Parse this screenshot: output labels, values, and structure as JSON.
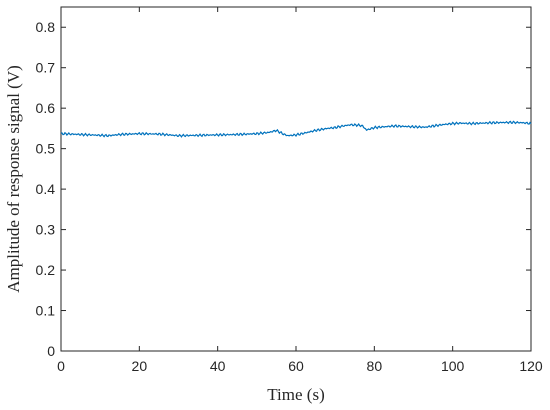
{
  "chart_data": {
    "type": "line",
    "title": "",
    "xlabel": "Time (s)",
    "ylabel": "Amplitude of response signal (V)",
    "xlim": [
      0,
      120
    ],
    "ylim": [
      0,
      0.85
    ],
    "xticks": [
      0,
      20,
      40,
      60,
      80,
      100,
      120
    ],
    "xtick_labels": [
      "0",
      "20",
      "40",
      "60",
      "80",
      "100",
      "120"
    ],
    "yticks": [
      0,
      0.1,
      0.2,
      0.3,
      0.4,
      0.5,
      0.6,
      0.7,
      0.8
    ],
    "ytick_labels": [
      "0",
      "0.1",
      "0.2",
      "0.3",
      "0.4",
      "0.5",
      "0.6",
      "0.7",
      "0.8"
    ],
    "grid": false,
    "legend": "none",
    "series": [
      {
        "color": "#0072bd",
        "x": [
          0,
          5,
          10,
          12,
          15,
          20,
          25,
          30,
          35,
          40,
          45,
          50,
          53,
          55,
          57,
          58,
          60,
          62,
          65,
          68,
          70,
          72,
          74,
          76,
          77,
          78,
          80,
          85,
          90,
          93,
          95,
          98,
          100,
          102,
          105,
          110,
          115,
          118,
          120
        ],
        "y": [
          0.537,
          0.535,
          0.533,
          0.532,
          0.535,
          0.537,
          0.536,
          0.532,
          0.533,
          0.534,
          0.535,
          0.537,
          0.54,
          0.545,
          0.535,
          0.532,
          0.534,
          0.538,
          0.545,
          0.55,
          0.552,
          0.556,
          0.559,
          0.558,
          0.556,
          0.546,
          0.552,
          0.556,
          0.554,
          0.553,
          0.556,
          0.56,
          0.562,
          0.563,
          0.562,
          0.564,
          0.565,
          0.564,
          0.562
        ]
      }
    ]
  }
}
